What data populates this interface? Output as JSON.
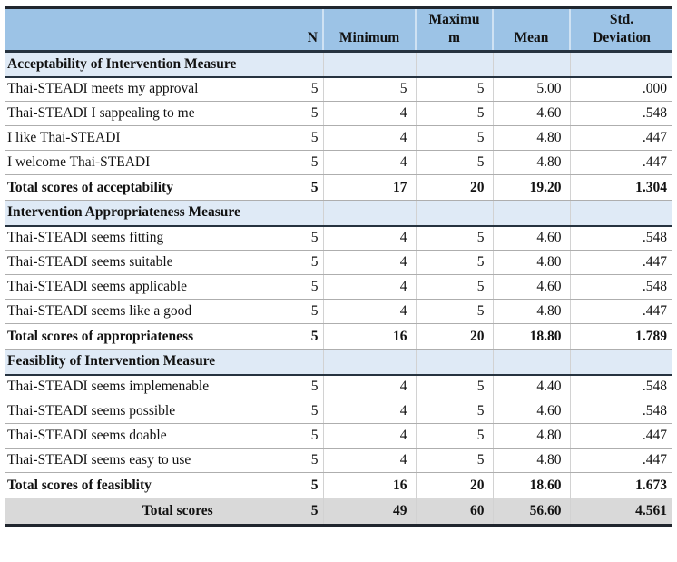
{
  "table": {
    "title_semantic": "Descriptive statistics of Thai-STEADI acceptability, appropriateness and feasibility measures",
    "header": {
      "label": "",
      "n": "N",
      "minimum": "Minimum",
      "maximum_line1": "Maximu",
      "maximum_line2": "m",
      "mean": "Mean",
      "std_line1": "Std.",
      "std_line2": "Deviation"
    },
    "sections": [
      {
        "title": "Acceptability of Intervention Measure",
        "rows": [
          {
            "label": "Thai-STEADI meets my approval",
            "n": "5",
            "min": "5",
            "max": "5",
            "mean": "5.00",
            "sd": ".000"
          },
          {
            "label": "Thai-STEADI I sappealing to me",
            "n": "5",
            "min": "4",
            "max": "5",
            "mean": "4.60",
            "sd": ".548"
          },
          {
            "label": "I like Thai-STEADI",
            "n": "5",
            "min": "4",
            "max": "5",
            "mean": "4.80",
            "sd": ".447"
          },
          {
            "label": "I welcome Thai-STEADI",
            "n": "5",
            "min": "4",
            "max": "5",
            "mean": "4.80",
            "sd": ".447"
          }
        ],
        "total": {
          "label": "Total scores of acceptability",
          "n": "5",
          "min": "17",
          "max": "20",
          "mean": "19.20",
          "sd": "1.304"
        }
      },
      {
        "title": "Intervention Appropriateness Measure",
        "rows": [
          {
            "label": "Thai-STEADI seems fitting",
            "n": "5",
            "min": "4",
            "max": "5",
            "mean": "4.60",
            "sd": ".548"
          },
          {
            "label": "Thai-STEADI seems suitable",
            "n": "5",
            "min": "4",
            "max": "5",
            "mean": "4.80",
            "sd": ".447"
          },
          {
            "label": "Thai-STEADI seems applicable",
            "n": "5",
            "min": "4",
            "max": "5",
            "mean": "4.60",
            "sd": ".548"
          },
          {
            "label": "Thai-STEADI seems like a good",
            "n": "5",
            "min": "4",
            "max": "5",
            "mean": "4.80",
            "sd": ".447"
          }
        ],
        "total": {
          "label": "Total scores of appropriateness",
          "n": "5",
          "min": "16",
          "max": "20",
          "mean": "18.80",
          "sd": "1.789"
        }
      },
      {
        "title": "Feasiblity of Intervention Measure",
        "rows": [
          {
            "label": "Thai-STEADI seems implemenable",
            "n": "5",
            "min": "4",
            "max": "5",
            "mean": "4.40",
            "sd": ".548"
          },
          {
            "label": "Thai-STEADI seems possible",
            "n": "5",
            "min": "4",
            "max": "5",
            "mean": "4.60",
            "sd": ".548"
          },
          {
            "label": "Thai-STEADI seems doable",
            "n": "5",
            "min": "4",
            "max": "5",
            "mean": "4.80",
            "sd": ".447"
          },
          {
            "label": "Thai-STEADI seems easy to use",
            "n": "5",
            "min": "4",
            "max": "5",
            "mean": "4.80",
            "sd": ".447"
          }
        ],
        "total": {
          "label": "Total scores of feasiblity",
          "n": "5",
          "min": "16",
          "max": "20",
          "mean": "18.60",
          "sd": "1.673"
        }
      }
    ],
    "grand_total": {
      "label": "Total scores",
      "n": "5",
      "min": "49",
      "max": "60",
      "mean": "56.60",
      "sd": "4.561"
    }
  },
  "colors": {
    "header_bg": "#9cc3e6",
    "section_bg": "#dfeaf6",
    "grand_bg": "#d9d9d9",
    "dark_border": "#263340"
  }
}
